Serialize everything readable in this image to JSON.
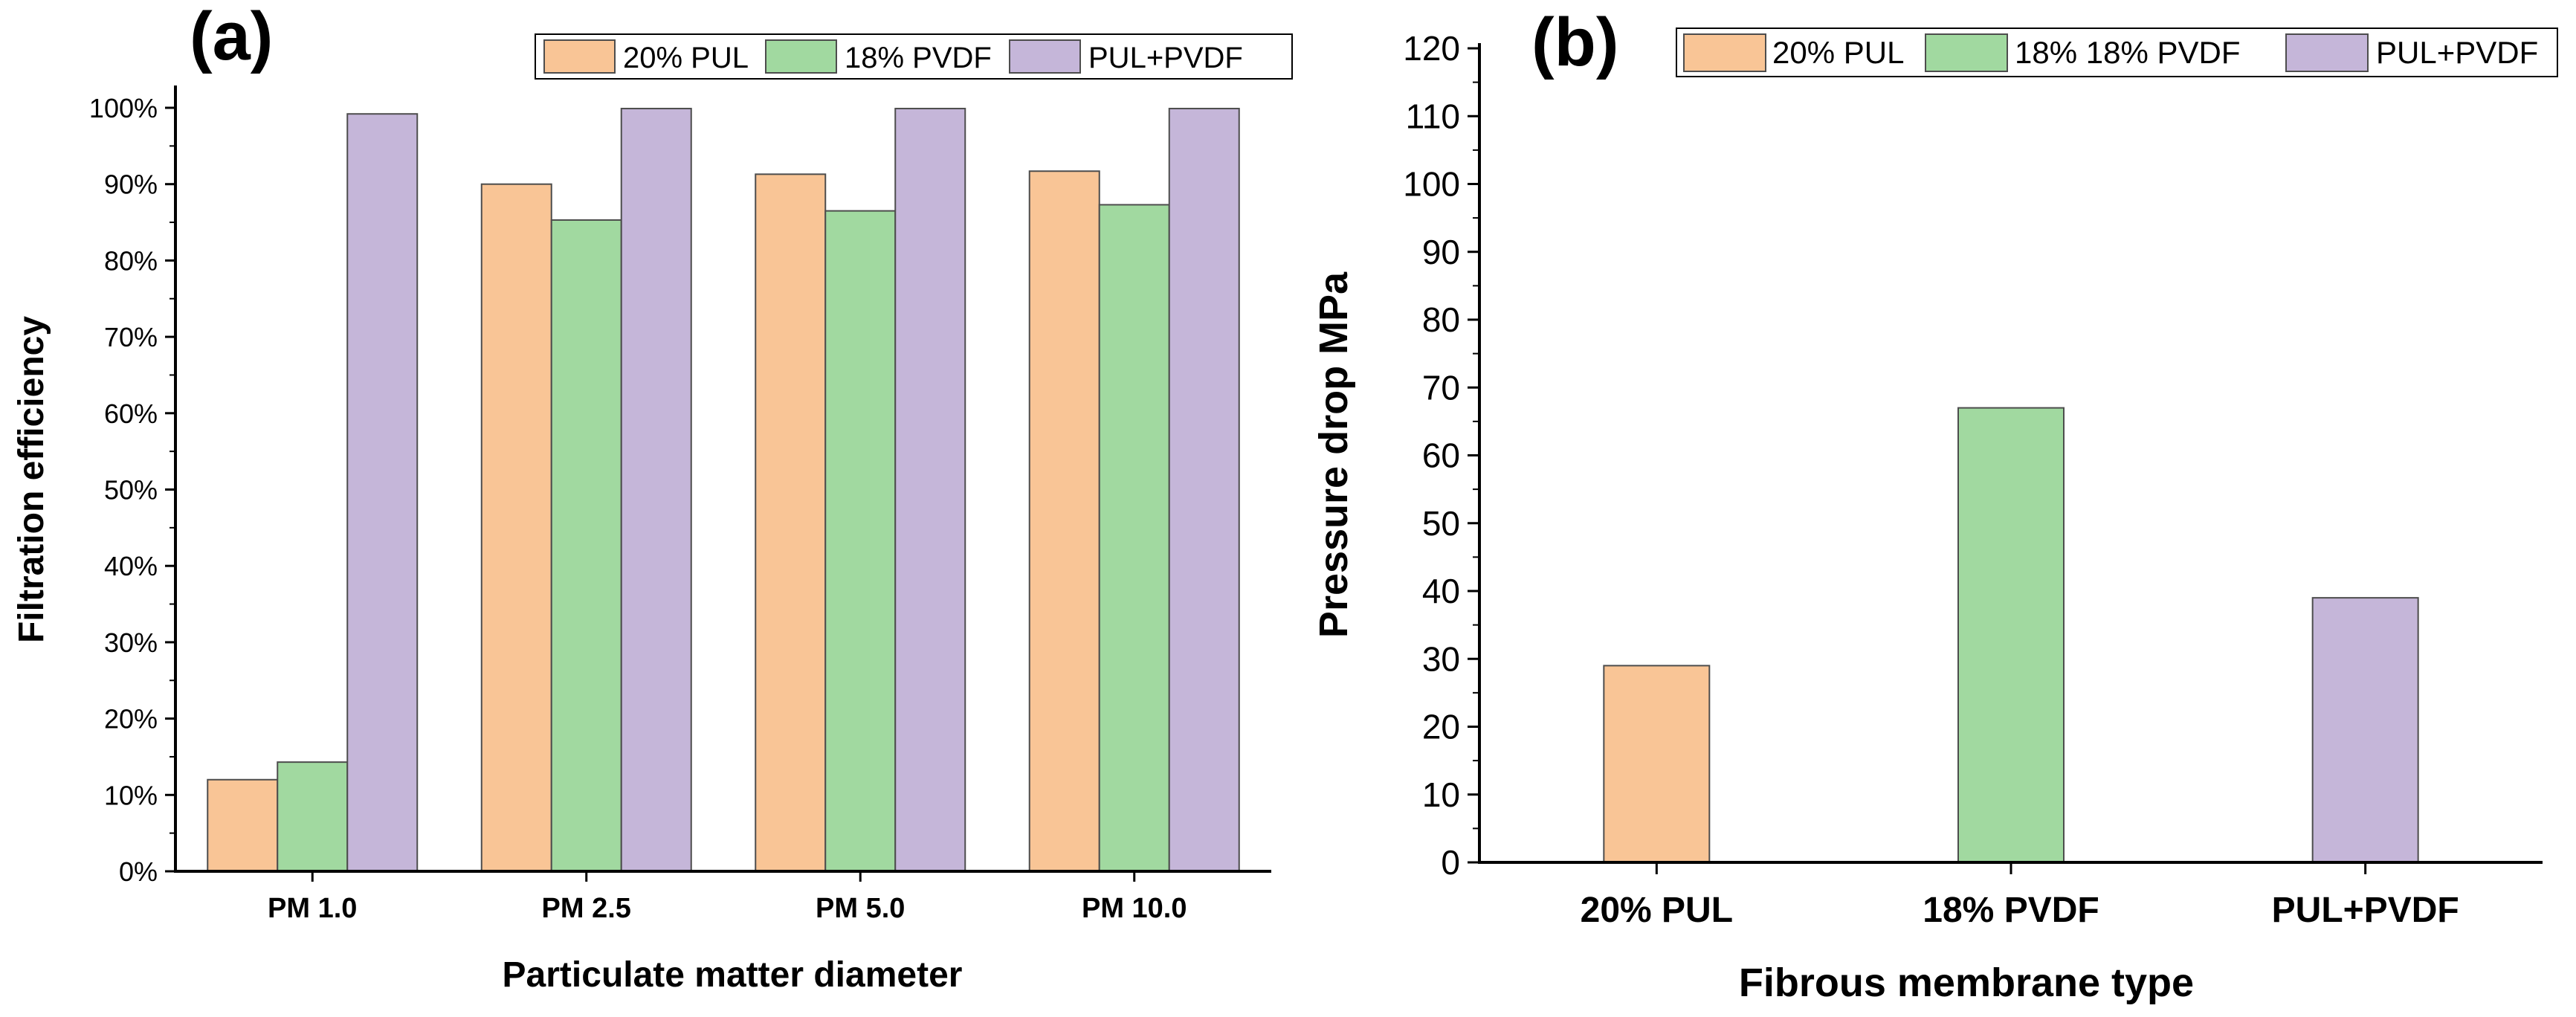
{
  "colors": {
    "pul": "#f9c596",
    "pvdf": "#a1d9a0",
    "pulpvdf": "#c5b6d9",
    "axis": "#000000",
    "bar_border": "#4d4d4d"
  },
  "chart_data": [
    {
      "type": "bar",
      "panel_label": "(a)",
      "xlabel": "Particulate matter diameter",
      "ylabel": "Filtration efficiency",
      "categories": [
        "PM 1.0",
        "PM 2.5",
        "PM 5.0",
        "PM 10.0"
      ],
      "ylim": [
        0,
        100
      ],
      "yticks": [
        0,
        10,
        20,
        30,
        40,
        50,
        60,
        70,
        80,
        90,
        100
      ],
      "ytick_labels": [
        "0%",
        "10%",
        "20%",
        "30%",
        "40%",
        "50%",
        "60%",
        "70%",
        "80%",
        "90%",
        "100%"
      ],
      "legend": [
        "20% PUL",
        "18% PVDF",
        "PUL+PVDF"
      ],
      "legend_position": "top-right",
      "series": [
        {
          "name": "20% PUL",
          "color_key": "pul",
          "values": [
            12,
            90,
            91.3,
            91.7
          ]
        },
        {
          "name": "18% PVDF",
          "color_key": "pvdf",
          "values": [
            14.3,
            85.3,
            86.5,
            87.3
          ]
        },
        {
          "name": "PUL+PVDF",
          "color_key": "pulpvdf",
          "values": [
            99.2,
            99.9,
            99.9,
            99.9
          ]
        }
      ]
    },
    {
      "type": "bar",
      "panel_label": "(b)",
      "xlabel": "Fibrous membrane type",
      "ylabel": "Pressure drop MPa",
      "categories": [
        "20% PUL",
        "18% PVDF",
        "PUL+PVDF"
      ],
      "ylim": [
        0,
        120
      ],
      "yticks": [
        0,
        10,
        20,
        30,
        40,
        50,
        60,
        70,
        80,
        90,
        100,
        110,
        120
      ],
      "ytick_labels": [
        "0",
        "10",
        "20",
        "30",
        "40",
        "50",
        "60",
        "70",
        "80",
        "90",
        "100",
        "110",
        "120"
      ],
      "legend": [
        "20% PUL",
        "18% 18% PVDF",
        "PUL+PVDF"
      ],
      "legend_position": "top-right",
      "values": [
        29,
        67,
        39
      ],
      "color_keys": [
        "pul",
        "pvdf",
        "pulpvdf"
      ]
    }
  ]
}
